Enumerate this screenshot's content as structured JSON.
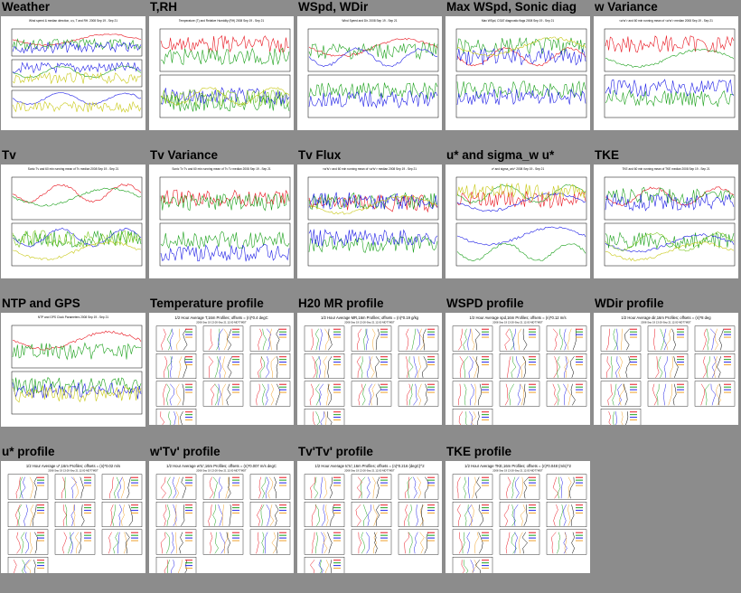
{
  "grid": [
    {
      "title": "Weather",
      "kind": "ts",
      "caption": "Wind speed & median direction, u,v, T and RH. 2008 Sep 19 - Sep 21",
      "panels": 3
    },
    {
      "title": "T,RH",
      "kind": "ts",
      "caption": "Temperature (T) and Relative Humidity (RH) 2008 Sep 19 - Sep 21",
      "panels": 2
    },
    {
      "title": "WSpd, WDir",
      "kind": "ts",
      "caption": "Wind Speed and Dir. 2008 Sep 19 - Sep 21",
      "panels": 2
    },
    {
      "title": "Max WSpd, Sonic diag",
      "kind": "ts",
      "caption": "Max WSpd, CSAT diagnostic flags 2008 Sep 19 - Sep 21",
      "panels": 2
    },
    {
      "title": "w Variance",
      "kind": "ts",
      "caption": "<w'w'> and 60 min running mean of <w'w'> median 2008 Sep 19 - Sep 21",
      "panels": 2
    },
    {
      "title": "Tv",
      "kind": "ts",
      "caption": "Sonic Tv and 60 min running mean of Tv median 2008 Sep 19 - Sep 21",
      "panels": 2
    },
    {
      "title": "Tv Variance",
      "kind": "ts",
      "caption": "Sonic Tv Tv and 60 min running mean of Tv Tv median 2008 Sep 19 - Sep 21",
      "panels": 2
    },
    {
      "title": "Tv Flux",
      "kind": "ts",
      "caption": "<w'tv'> and 60 min running mean of <w'tv'> median 2008 Sep 19 - Sep 21",
      "panels": 2
    },
    {
      "title": "u* and sigma_w u*",
      "kind": "ts",
      "caption": "u* and sigma_w/u* 2008 Sep 19 - Sep 21",
      "panels": 2
    },
    {
      "title": "TKE",
      "kind": "ts",
      "caption": "TKE and 60 min running mean of TKE median 2008 Sep 19 - Sep 21",
      "panels": 2
    },
    {
      "title": "NTP and GPS",
      "kind": "ts",
      "caption": "NTP and GPS Clock Parameters 2008 Sep 19 - Sep 21",
      "panels": 2
    },
    {
      "title": "Temperature profile",
      "kind": "prof",
      "caption": "1/2 Hour Average T,16m Profiles; offsets = (n)*0.4 degC",
      "sub": "2008 Sep 19 13:00-Sep 21 12:00 MDT7MDT"
    },
    {
      "title": "H20 MR profile",
      "kind": "prof",
      "caption": "1/2 Hour Average MR,16m Profiles; offsets = (n)*0.19 g/kg",
      "sub": "2008 Sep 19 13:00-Sep 21 12:00 MDT7MDT"
    },
    {
      "title": "WSPD profile",
      "kind": "prof",
      "caption": "1/2 Hour Average spd,16m Profiles; offsets = (n)*0.12 m/s",
      "sub": "2008 Sep 19 13:00-Sep 21 12:00 MDT7MDT"
    },
    {
      "title": "WDir profile",
      "kind": "prof",
      "caption": "1/2 Hour Average dir,16m Profiles; offsets = (n)*8 deg",
      "sub": "2008 Sep 19 13:00-Sep 21 12:00 MDT7MDT"
    },
    {
      "title": "u* profile",
      "kind": "prof",
      "caption": "1/2 Hour Average u*,16m Profiles; offsets = (n)*0.02 m/s",
      "sub": "2008 Sep 19 13:00-Sep 21 12:00 MDT7MDT"
    },
    {
      "title": "w'Tv' profile",
      "kind": "prof",
      "caption": "1/2 Hour Average w'tc',16m Profiles; offsets = (n)*0.007 m/s degC",
      "sub": "2008 Sep 19 13:00-Sep 21 12:00 MDT7MDT"
    },
    {
      "title": "Tv'Tv' profile",
      "kind": "prof",
      "caption": "1/2 Hour Average tc'tc',16m Profiles; offsets = (n)*0.216 (degC)^2",
      "sub": "2008 Sep 19 13:00-Sep 21 12:00 MDT7MDT"
    },
    {
      "title": "TKE profile",
      "kind": "prof",
      "caption": "1/2 Hour Average TKE,16m Profiles; offsets = (n)*0.048 (m/s)^2",
      "sub": "2008 Sep 19 13:00-Sep 21 12:00 MDT7MDT"
    }
  ],
  "colors": {
    "background": "#8c8c8c",
    "red": "#e8141e",
    "green": "#1aa01a",
    "blue": "#1e1ee6",
    "yellow": "#c8c814",
    "lime": "#7cc81e",
    "orange": "#f0a028",
    "black": "#000000"
  }
}
